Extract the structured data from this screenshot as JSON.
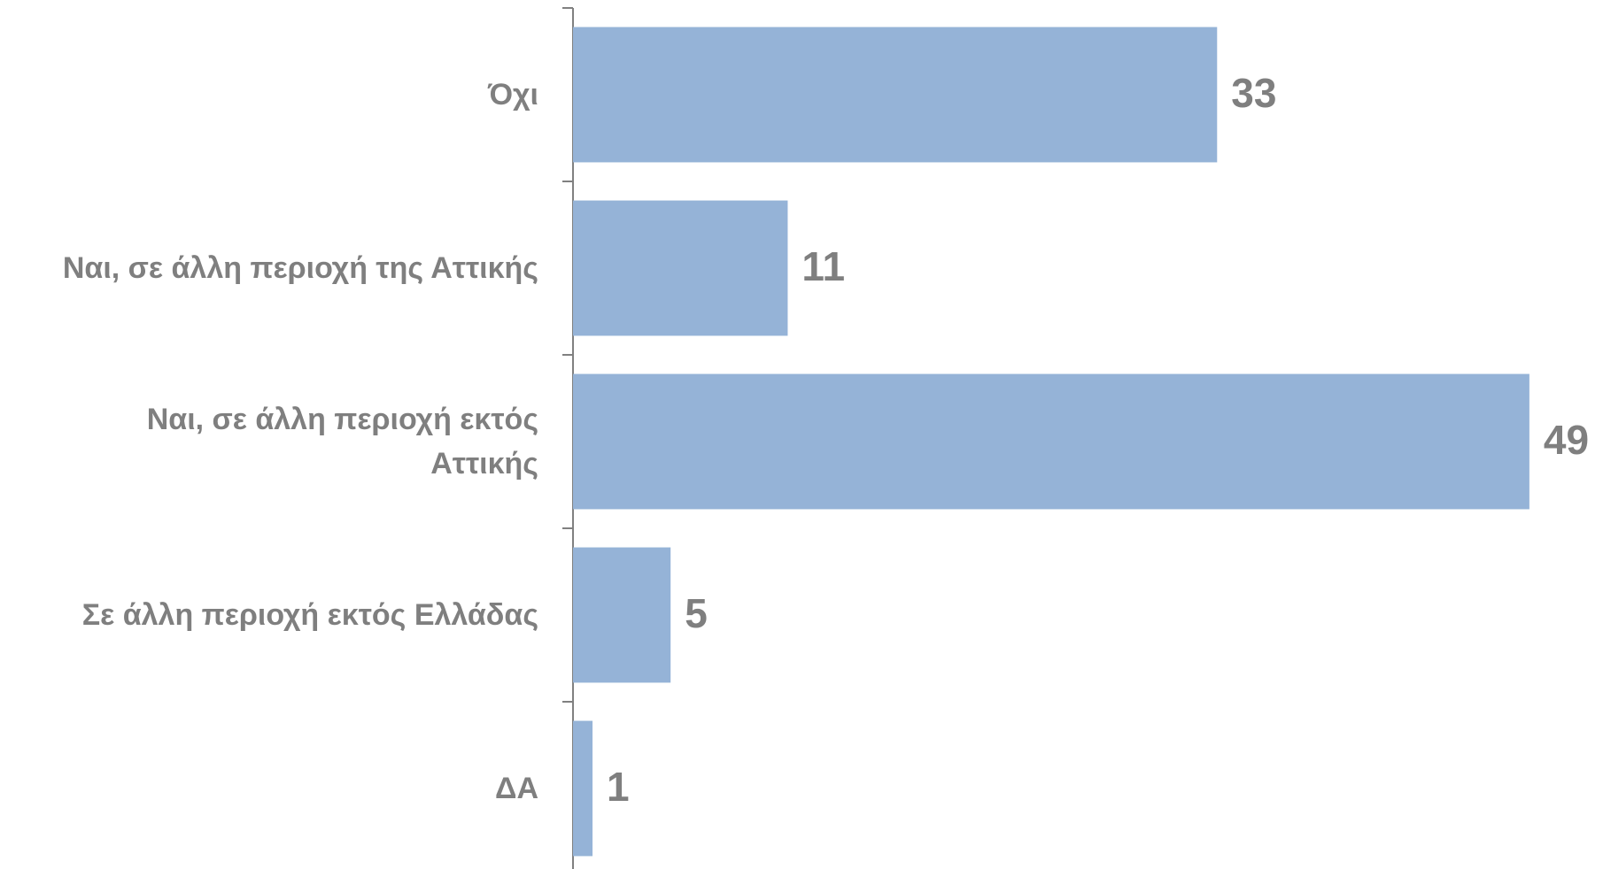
{
  "chart_data": {
    "type": "bar",
    "orientation": "horizontal",
    "categories": [
      "Όχι",
      "Ναι, σε άλλη περιοχή της Αττικής",
      "Ναι, σε άλλη περιοχή εκτός\nΑττικής",
      "Σε άλλη περιοχή εκτός Ελλάδας",
      "ΔΑ"
    ],
    "values": [
      33,
      11,
      49,
      5,
      1
    ],
    "color": "#95b3d7",
    "xlim": [
      0,
      52
    ]
  }
}
